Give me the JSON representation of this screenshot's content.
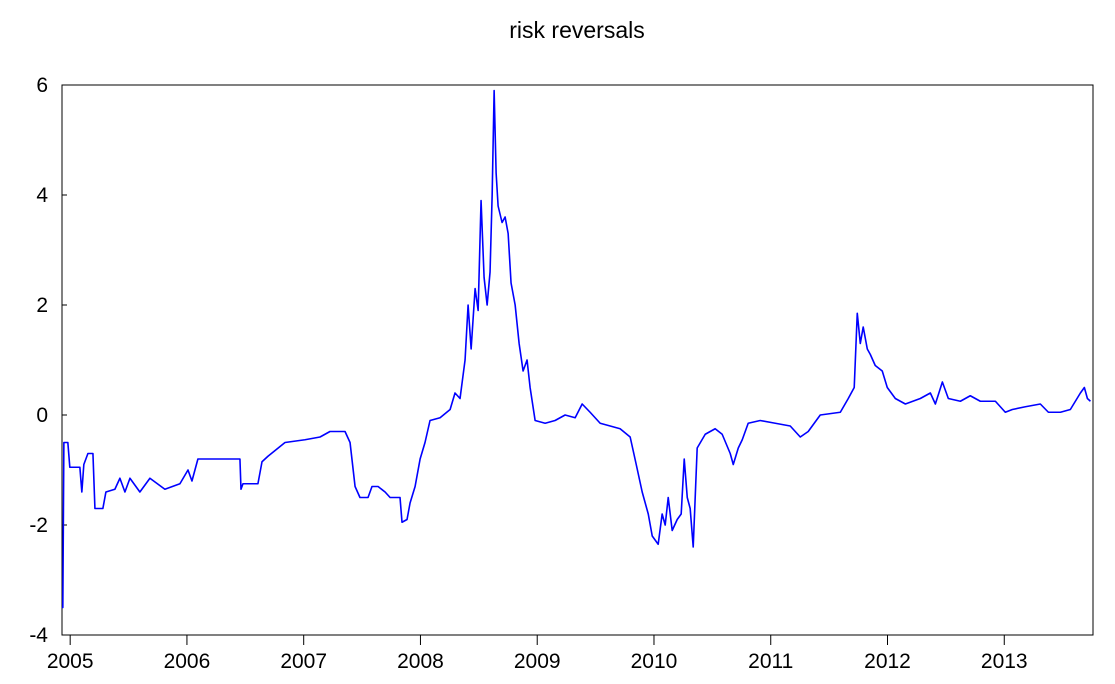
{
  "chart_data": {
    "type": "line",
    "title": "risk reversals",
    "x": [
      2004.929,
      2004.937,
      2004.946,
      2004.98,
      2004.997,
      2005.083,
      2005.1,
      2005.117,
      2005.152,
      2005.195,
      2005.212,
      2005.28,
      2005.306,
      2005.383,
      2005.426,
      2005.469,
      2005.512,
      2005.597,
      2005.683,
      2005.811,
      2005.94,
      2006.009,
      2006.043,
      2006.094,
      2006.24,
      2006.454,
      2006.463,
      2006.48,
      2006.608,
      2006.643,
      2006.694,
      2006.84,
      2007.011,
      2007.14,
      2007.225,
      2007.311,
      2007.354,
      2007.397,
      2007.44,
      2007.482,
      2007.551,
      2007.585,
      2007.637,
      2007.697,
      2007.74,
      2007.825,
      2007.842,
      2007.885,
      2007.911,
      2007.954,
      2007.997,
      2008.039,
      2008.082,
      2008.168,
      2008.254,
      2008.296,
      2008.339,
      2008.382,
      2008.408,
      2008.434,
      2008.468,
      2008.494,
      2008.519,
      2008.545,
      2008.571,
      2008.596,
      2008.614,
      2008.631,
      2008.648,
      2008.665,
      2008.699,
      2008.725,
      2008.751,
      2008.776,
      2008.811,
      2008.845,
      2008.879,
      2008.913,
      2008.939,
      2008.982,
      2009.068,
      2009.153,
      2009.239,
      2009.325,
      2009.385,
      2009.453,
      2009.539,
      2009.625,
      2009.71,
      2009.796,
      2009.848,
      2009.899,
      2009.951,
      2009.985,
      2010.036,
      2010.07,
      2010.096,
      2010.122,
      2010.156,
      2010.199,
      2010.233,
      2010.259,
      2010.285,
      2010.31,
      2010.336,
      2010.37,
      2010.439,
      2010.524,
      2010.584,
      2010.653,
      2010.679,
      2010.722,
      2010.756,
      2010.807,
      2010.91,
      2011.039,
      2011.167,
      2011.253,
      2011.321,
      2011.424,
      2011.596,
      2011.664,
      2011.715,
      2011.741,
      2011.767,
      2011.792,
      2011.827,
      2011.853,
      2011.895,
      2011.955,
      2011.998,
      2012.067,
      2012.153,
      2012.281,
      2012.367,
      2012.41,
      2012.47,
      2012.521,
      2012.624,
      2012.709,
      2012.795,
      2012.924,
      2013.009,
      2013.069,
      2013.181,
      2013.309,
      2013.378,
      2013.481,
      2013.566,
      2013.652,
      2013.686,
      2013.712,
      2013.738
    ],
    "series": [
      {
        "name": "risk reversals",
        "color": "#0000ff",
        "values": [
          -3.5,
          -3.5,
          -0.5,
          -0.5,
          -0.95,
          -0.95,
          -1.4,
          -0.9,
          -0.7,
          -0.7,
          -1.7,
          -1.7,
          -1.4,
          -1.35,
          -1.15,
          -1.4,
          -1.15,
          -1.4,
          -1.15,
          -1.35,
          -1.25,
          -1.0,
          -1.2,
          -0.8,
          -0.8,
          -0.8,
          -1.35,
          -1.25,
          -1.25,
          -0.85,
          -0.75,
          -0.5,
          -0.45,
          -0.4,
          -0.3,
          -0.3,
          -0.3,
          -0.5,
          -1.3,
          -1.5,
          -1.5,
          -1.3,
          -1.3,
          -1.4,
          -1.5,
          -1.5,
          -1.95,
          -1.9,
          -1.6,
          -1.3,
          -0.8,
          -0.5,
          -0.1,
          -0.05,
          0.1,
          0.4,
          0.3,
          1.0,
          2.0,
          1.2,
          2.3,
          1.9,
          3.9,
          2.5,
          2.0,
          2.6,
          4.0,
          5.9,
          4.4,
          3.8,
          3.5,
          3.6,
          3.3,
          2.4,
          2.0,
          1.3,
          0.8,
          1.0,
          0.5,
          -0.1,
          -0.15,
          -0.1,
          0.0,
          -0.05,
          0.2,
          0.05,
          -0.15,
          -0.2,
          -0.25,
          -0.4,
          -0.9,
          -1.4,
          -1.8,
          -2.2,
          -2.35,
          -1.8,
          -2.0,
          -1.5,
          -2.1,
          -1.9,
          -1.8,
          -0.8,
          -1.5,
          -1.7,
          -2.4,
          -0.6,
          -0.35,
          -0.25,
          -0.35,
          -0.7,
          -0.9,
          -0.6,
          -0.45,
          -0.15,
          -0.1,
          -0.15,
          -0.2,
          -0.4,
          -0.3,
          0.0,
          0.05,
          0.3,
          0.5,
          1.85,
          1.3,
          1.6,
          1.2,
          1.1,
          0.9,
          0.8,
          0.5,
          0.3,
          0.2,
          0.3,
          0.4,
          0.2,
          0.6,
          0.3,
          0.25,
          0.35,
          0.25,
          0.25,
          0.05,
          0.1,
          0.15,
          0.2,
          0.05,
          0.05,
          0.1,
          0.4,
          0.5,
          0.3,
          0.25
        ]
      }
    ],
    "xlim": [
      2004.93,
      2013.76
    ],
    "xticks": [
      2005,
      2006,
      2007,
      2008,
      2009,
      2010,
      2011,
      2012,
      2013
    ],
    "ylim": [
      -4,
      6
    ],
    "yticks": [
      -4,
      -2,
      0,
      2,
      4,
      6
    ],
    "grid": false
  }
}
